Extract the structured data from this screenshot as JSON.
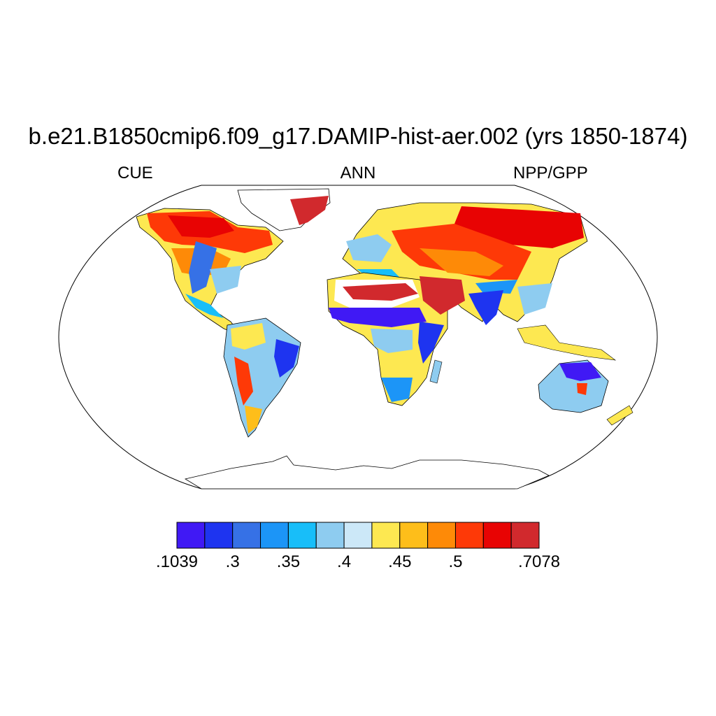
{
  "title": "b.e21.B1850cmip6.f09_g17.DAMIP-hist-aer.002 (yrs 1850-1874)",
  "left_label": "CUE",
  "center_label": "ANN",
  "right_label": "NPP/GPP",
  "colorbar": {
    "colors": [
      "#4019F5",
      "#1E34F0",
      "#3671E6",
      "#1C95F7",
      "#18BEF9",
      "#8ECCF0",
      "#CCE8F8",
      "#FDE851",
      "#FEBE1A",
      "#FE8A07",
      "#FE3907",
      "#E80303",
      "#D1292D"
    ],
    "boundaries": [
      ".1039",
      ".3",
      ".35",
      ".4",
      ".45",
      ".5",
      ".7078"
    ]
  },
  "legend_tick_positions": [
    0,
    2,
    4,
    6,
    8,
    10,
    13
  ]
}
